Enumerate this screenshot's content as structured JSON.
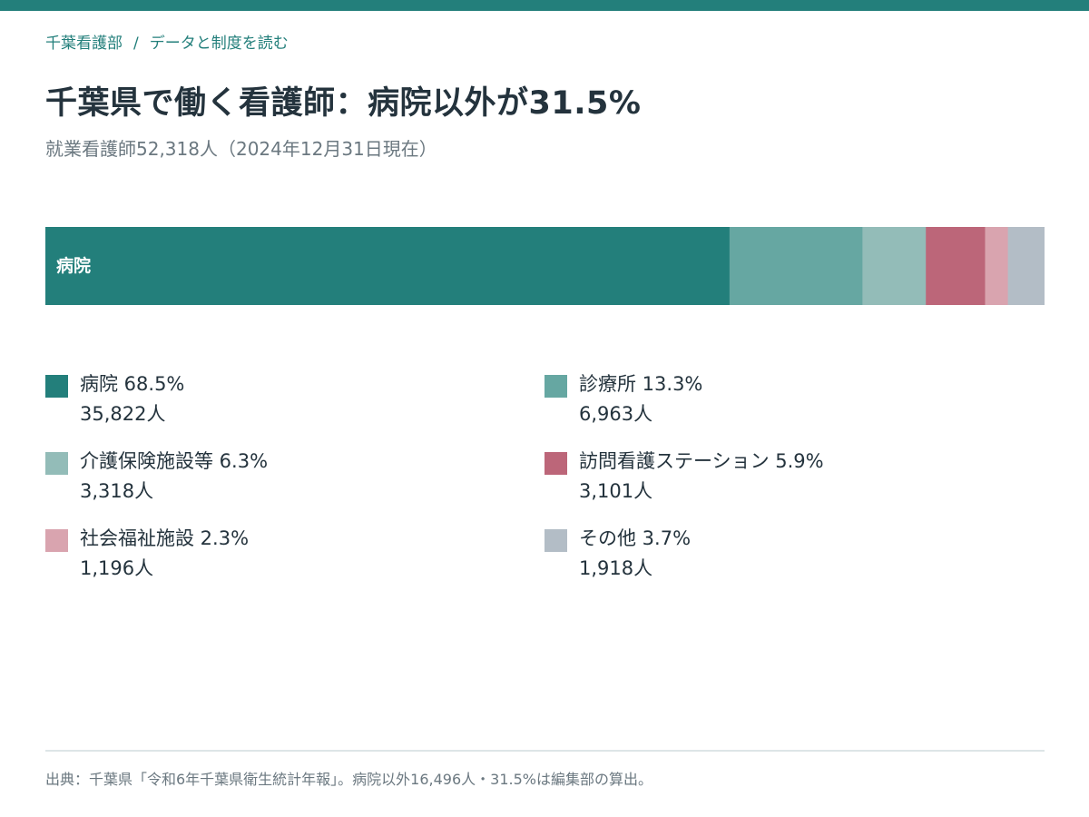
{
  "breadcrumb": {
    "home": "千葉看護部",
    "separator": "/",
    "current": "データと制度を読む"
  },
  "header": {
    "title": "千葉県で働く看護師：病院以外が31.5%",
    "subtitle": "就業看護師52,318人（2024年12月31日現在）"
  },
  "chart_data": {
    "type": "bar",
    "orientation": "horizontal-stacked-100",
    "title": "千葉県で働く看護師：病院以外が31.5%",
    "subtitle": "就業看護師52,318人（2024年12月31日現在）",
    "total": 52318,
    "unit": "人",
    "bar_inline_label": "病院",
    "legend_placement": "bottom",
    "series": [
      {
        "name": "病院",
        "percent": 68.5,
        "percent_text": "68.5%",
        "count": 35822,
        "count_text": "35,822人",
        "color": "#237f7b"
      },
      {
        "name": "診療所",
        "percent": 13.3,
        "percent_text": "13.3%",
        "count": 6963,
        "count_text": "6,963人",
        "color": "#66a7a2"
      },
      {
        "name": "介護保険施設等",
        "percent": 6.3,
        "percent_text": "6.3%",
        "count": 3318,
        "count_text": "3,318人",
        "color": "#93bcb8"
      },
      {
        "name": "訪問看護ステーション",
        "percent": 5.9,
        "percent_text": "5.9%",
        "count": 3101,
        "count_text": "3,101人",
        "color": "#bc6679"
      },
      {
        "name": "社会福祉施設",
        "percent": 2.3,
        "percent_text": "2.3%",
        "count": 1196,
        "count_text": "1,196人",
        "color": "#d9a4af"
      },
      {
        "name": "その他",
        "percent": 3.7,
        "percent_text": "3.7%",
        "count": 1918,
        "count_text": "1,918人",
        "color": "#b3bdc6"
      }
    ],
    "bar_order": [
      "病院",
      "診療所",
      "介護保険施設等",
      "訪問看護ステーション",
      "社会福祉施設",
      "その他"
    ]
  },
  "footer": {
    "source": "出典：千葉県「令和6年千葉県衛生統計年報」。病院以外16,496人・31.5%は編集部の算出。"
  }
}
